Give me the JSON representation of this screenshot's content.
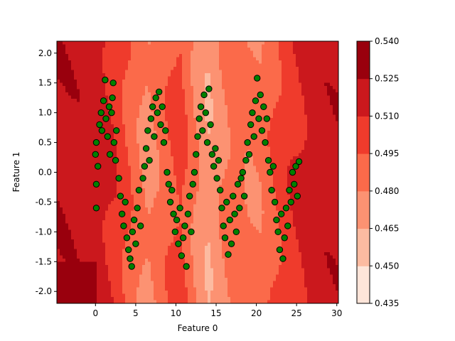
{
  "chart_data": {
    "type": "scatter",
    "xlabel": "Feature 0",
    "ylabel": "Feature 1",
    "xlim": [
      -4.8,
      30.2
    ],
    "ylim": [
      -2.2,
      2.2
    ],
    "x_ticks": [
      0,
      5,
      10,
      15,
      20,
      25,
      30
    ],
    "y_ticks": [
      -2.0,
      -1.5,
      -1.0,
      -0.5,
      0.0,
      0.5,
      1.0,
      1.5,
      2.0
    ],
    "grid": false,
    "background": "filled contour map of a predicted value (Reds colormap)",
    "contour_levels": [
      0.435,
      0.45,
      0.465,
      0.48,
      0.495,
      0.51,
      0.525,
      0.54
    ],
    "colorbar_ticks": [
      "0.435",
      "0.450",
      "0.465",
      "0.480",
      "0.495",
      "0.510",
      "0.525",
      "0.540"
    ],
    "colors": [
      "#fee5d9",
      "#fcbba1",
      "#fc9272",
      "#fb6a4a",
      "#ef3b2c",
      "#cb181d",
      "#99000d"
    ],
    "marker_color": "#008000",
    "marker_edge_color": "#000000",
    "series": [
      {
        "points": [
          [
            0.0,
            0.3
          ],
          [
            0.1,
            -0.2
          ],
          [
            0.1,
            0.5
          ],
          [
            0.1,
            -0.6
          ],
          [
            0.3,
            0.1
          ],
          [
            0.5,
            0.8
          ],
          [
            0.7,
            1.0
          ],
          [
            0.8,
            0.7
          ],
          [
            1.0,
            1.2
          ],
          [
            1.2,
            1.55
          ],
          [
            1.3,
            0.9
          ],
          [
            1.5,
            0.6
          ],
          [
            1.7,
            1.1
          ],
          [
            1.8,
            0.3
          ],
          [
            2.0,
            1.0
          ],
          [
            2.1,
            1.25
          ],
          [
            2.2,
            1.5
          ],
          [
            2.3,
            0.5
          ],
          [
            2.5,
            0.2
          ],
          [
            2.6,
            0.7
          ],
          [
            2.9,
            -0.1
          ],
          [
            3.1,
            -0.4
          ],
          [
            3.3,
            -0.7
          ],
          [
            3.5,
            -0.9
          ],
          [
            3.7,
            -0.5
          ],
          [
            3.9,
            -1.1
          ],
          [
            4.1,
            -1.3
          ],
          [
            4.3,
            -1.45
          ],
          [
            4.5,
            -1.58
          ],
          [
            4.6,
            -1.0
          ],
          [
            4.8,
            -0.8
          ],
          [
            5.0,
            -1.2
          ],
          [
            5.2,
            -0.6
          ],
          [
            5.4,
            -0.3
          ],
          [
            5.6,
            -0.9
          ],
          [
            5.9,
            -0.1
          ],
          [
            6.1,
            0.1
          ],
          [
            6.3,
            0.4
          ],
          [
            6.5,
            0.7
          ],
          [
            6.7,
            0.2
          ],
          [
            6.9,
            0.9
          ],
          [
            7.1,
            1.1
          ],
          [
            7.3,
            0.6
          ],
          [
            7.5,
            1.25
          ],
          [
            7.7,
            1.0
          ],
          [
            7.9,
            1.35
          ],
          [
            8.1,
            0.8
          ],
          [
            8.3,
            1.1
          ],
          [
            8.5,
            0.5
          ],
          [
            8.7,
            0.7
          ],
          [
            8.9,
            0.0
          ],
          [
            9.1,
            -0.2
          ],
          [
            9.3,
            -0.5
          ],
          [
            9.5,
            -0.3
          ],
          [
            9.7,
            -0.7
          ],
          [
            9.9,
            -1.0
          ],
          [
            10.1,
            -0.8
          ],
          [
            10.3,
            -1.2
          ],
          [
            10.5,
            -0.6
          ],
          [
            10.7,
            -1.4
          ],
          [
            10.9,
            -1.1
          ],
          [
            11.1,
            -0.9
          ],
          [
            11.3,
            -1.58
          ],
          [
            11.5,
            -0.7
          ],
          [
            11.7,
            -0.4
          ],
          [
            11.9,
            -1.0
          ],
          [
            12.1,
            -0.2
          ],
          [
            12.3,
            0.0
          ],
          [
            12.5,
            0.3
          ],
          [
            12.7,
            0.6
          ],
          [
            12.9,
            0.9
          ],
          [
            13.1,
            1.1
          ],
          [
            13.3,
            0.7
          ],
          [
            13.5,
            1.3
          ],
          [
            13.7,
            1.0
          ],
          [
            13.9,
            0.5
          ],
          [
            14.1,
            1.4
          ],
          [
            14.3,
            0.8
          ],
          [
            14.5,
            0.3
          ],
          [
            14.7,
            0.1
          ],
          [
            14.9,
            0.4
          ],
          [
            15.1,
            -0.1
          ],
          [
            15.3,
            0.2
          ],
          [
            15.5,
            -0.3
          ],
          [
            15.7,
            -0.6
          ],
          [
            15.9,
            -0.9
          ],
          [
            16.1,
            -1.1
          ],
          [
            16.3,
            -0.5
          ],
          [
            16.5,
            -1.38
          ],
          [
            16.7,
            -0.8
          ],
          [
            16.9,
            -1.2
          ],
          [
            17.1,
            -0.4
          ],
          [
            17.3,
            -0.7
          ],
          [
            17.5,
            -1.0
          ],
          [
            17.7,
            -0.2
          ],
          [
            17.9,
            -0.6
          ],
          [
            18.1,
            -0.1
          ],
          [
            18.3,
            0.0
          ],
          [
            18.5,
            -0.4
          ],
          [
            18.7,
            0.2
          ],
          [
            18.9,
            0.5
          ],
          [
            19.1,
            0.3
          ],
          [
            19.3,
            0.8
          ],
          [
            19.5,
            1.0
          ],
          [
            19.7,
            0.6
          ],
          [
            19.9,
            1.2
          ],
          [
            20.1,
            1.58
          ],
          [
            20.3,
            0.9
          ],
          [
            20.5,
            1.3
          ],
          [
            20.7,
            0.7
          ],
          [
            20.9,
            1.1
          ],
          [
            21.1,
            0.5
          ],
          [
            21.3,
            0.9
          ],
          [
            21.5,
            0.2
          ],
          [
            21.7,
            0.0
          ],
          [
            21.9,
            -0.3
          ],
          [
            22.1,
            0.1
          ],
          [
            22.3,
            -0.5
          ],
          [
            22.5,
            -0.8
          ],
          [
            22.7,
            -1.0
          ],
          [
            22.9,
            -1.3
          ],
          [
            23.1,
            -0.7
          ],
          [
            23.3,
            -1.45
          ],
          [
            23.5,
            -1.1
          ],
          [
            23.7,
            -0.6
          ],
          [
            23.9,
            -0.9
          ],
          [
            24.1,
            -0.3
          ],
          [
            24.3,
            -0.5
          ],
          [
            24.5,
            0.0
          ],
          [
            24.7,
            -0.2
          ],
          [
            24.9,
            0.1
          ],
          [
            25.1,
            -0.4
          ],
          [
            25.3,
            0.18
          ]
        ]
      }
    ]
  }
}
